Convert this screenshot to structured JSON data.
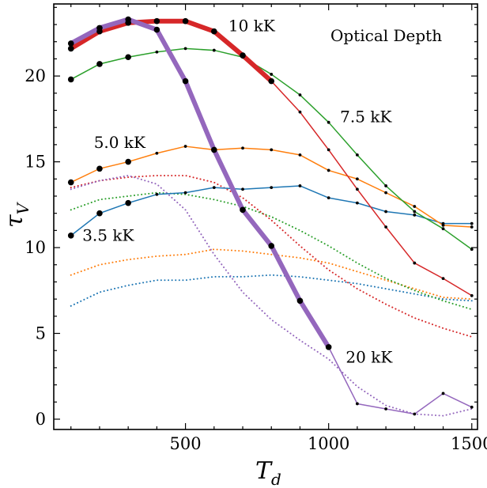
{
  "chart_data": {
    "type": "line",
    "title": "Optical Depth",
    "xlabel": {
      "main": "T",
      "sub": "d"
    },
    "ylabel": {
      "main": "τ",
      "sub": "V"
    },
    "xlim": [
      40,
      1520
    ],
    "ylim": [
      -0.6,
      24.2
    ],
    "xticks": [
      500,
      1000,
      1500
    ],
    "yticks": [
      0,
      5,
      10,
      15,
      20
    ],
    "grid": false,
    "legend": "none",
    "series": [
      {
        "color": "#1f77b4",
        "style": "solid",
        "width": 1.5,
        "marker": "large-first-points",
        "x": [
          100,
          200,
          300,
          400,
          500,
          600,
          700,
          800,
          900,
          1000,
          1100,
          1200,
          1300,
          1400,
          1500
        ],
        "y": [
          10.7,
          12.0,
          12.6,
          13.1,
          13.2,
          13.5,
          13.4,
          13.5,
          13.6,
          12.9,
          12.6,
          12.1,
          11.9,
          11.4,
          11.4
        ]
      },
      {
        "color": "#ff7f0e",
        "style": "solid",
        "width": 1.5,
        "marker": "large-first-points",
        "x": [
          100,
          200,
          300,
          400,
          500,
          600,
          700,
          800,
          900,
          1000,
          1100,
          1200,
          1300,
          1400,
          1500
        ],
        "y": [
          13.8,
          14.6,
          15.0,
          15.5,
          15.9,
          15.7,
          15.8,
          15.7,
          15.4,
          14.5,
          14.0,
          13.2,
          12.4,
          11.3,
          11.2
        ]
      },
      {
        "color": "#2ca02c",
        "style": "solid",
        "width": 1.5,
        "marker": "large-first-points",
        "x": [
          100,
          200,
          300,
          400,
          500,
          600,
          700,
          800,
          900,
          1000,
          1100,
          1200,
          1300,
          1400,
          1500
        ],
        "y": [
          19.8,
          20.7,
          21.1,
          21.4,
          21.6,
          21.5,
          21.1,
          20.1,
          18.9,
          17.3,
          15.4,
          13.6,
          12.1,
          11.1,
          9.9
        ]
      },
      {
        "color": "#d62728",
        "style": "solid",
        "width": 1.5,
        "marker": "small-points",
        "x": [
          800,
          900,
          1000,
          1100,
          1200,
          1300,
          1400,
          1500
        ],
        "y": [
          19.7,
          17.9,
          15.7,
          13.4,
          11.2,
          9.1,
          8.2,
          7.2
        ]
      },
      {
        "color": "#d62728",
        "style": "solid",
        "width": 6,
        "marker": "large-points",
        "x": [
          100,
          200,
          300,
          400,
          500,
          600,
          700,
          800
        ],
        "y": [
          21.6,
          22.6,
          23.1,
          23.2,
          23.2,
          22.6,
          21.2,
          19.7
        ]
      },
      {
        "color": "#9467bd",
        "style": "solid",
        "width": 1.5,
        "marker": "small-points",
        "x": [
          1000,
          1100,
          1200,
          1300,
          1400,
          1500
        ],
        "y": [
          4.2,
          0.9,
          0.6,
          0.3,
          1.5,
          0.7
        ]
      },
      {
        "color": "#9467bd",
        "style": "solid",
        "width": 6,
        "marker": "large-points",
        "x": [
          100,
          200,
          300,
          400,
          500,
          600,
          700,
          800,
          900,
          1000
        ],
        "y": [
          21.9,
          22.8,
          23.3,
          22.7,
          19.7,
          15.7,
          12.2,
          10.1,
          6.9,
          4.2
        ]
      },
      {
        "color": "#1f77b4",
        "style": "dotted",
        "width": 2,
        "marker": "none",
        "x": [
          100,
          200,
          300,
          400,
          500,
          600,
          700,
          800,
          900,
          1000,
          1100,
          1200,
          1300,
          1400,
          1500
        ],
        "y": [
          6.6,
          7.4,
          7.8,
          8.1,
          8.1,
          8.3,
          8.3,
          8.4,
          8.3,
          8.1,
          7.9,
          7.6,
          7.3,
          7.0,
          6.9
        ]
      },
      {
        "color": "#ff7f0e",
        "style": "dotted",
        "width": 2,
        "marker": "none",
        "x": [
          100,
          200,
          300,
          400,
          500,
          600,
          700,
          800,
          900,
          1000,
          1100,
          1200,
          1300,
          1400,
          1500
        ],
        "y": [
          8.4,
          9.0,
          9.3,
          9.5,
          9.6,
          9.9,
          9.8,
          9.6,
          9.4,
          9.1,
          8.6,
          8.1,
          7.6,
          7.1,
          7.0
        ]
      },
      {
        "color": "#2ca02c",
        "style": "dotted",
        "width": 2,
        "marker": "none",
        "x": [
          100,
          200,
          300,
          400,
          500,
          600,
          700,
          800,
          900,
          1000,
          1100,
          1200,
          1300,
          1400,
          1500
        ],
        "y": [
          12.2,
          12.8,
          13.0,
          13.2,
          13.1,
          12.8,
          12.4,
          11.8,
          11.0,
          10.1,
          9.1,
          8.2,
          7.5,
          6.9,
          6.4
        ]
      },
      {
        "color": "#d62728",
        "style": "dotted",
        "width": 2,
        "marker": "none",
        "x": [
          100,
          200,
          300,
          400,
          500,
          600,
          700,
          800,
          900,
          1000,
          1100,
          1200,
          1300,
          1400,
          1500
        ],
        "y": [
          13.5,
          13.9,
          14.1,
          14.2,
          14.2,
          13.8,
          12.9,
          11.6,
          10.1,
          8.7,
          7.6,
          6.7,
          5.9,
          5.3,
          4.8
        ]
      },
      {
        "color": "#9467bd",
        "style": "dotted",
        "width": 2,
        "marker": "none",
        "x": [
          100,
          200,
          300,
          400,
          500,
          600,
          700,
          800,
          900,
          1000,
          1100,
          1200,
          1300,
          1400,
          1500
        ],
        "y": [
          13.4,
          13.9,
          14.2,
          13.7,
          12.2,
          9.6,
          7.4,
          5.8,
          4.6,
          3.5,
          1.9,
          0.8,
          0.3,
          0.2,
          0.6
        ]
      }
    ],
    "annotations": [
      {
        "text": "10 kK",
        "x": 650,
        "y": 22.6
      },
      {
        "text": "7.5 kK",
        "x": 1040,
        "y": 17.3
      },
      {
        "text": "5.0 kK",
        "x": 180,
        "y": 15.8
      },
      {
        "text": "3.5 kK",
        "x": 140,
        "y": 10.4
      },
      {
        "text": "20 kK",
        "x": 1060,
        "y": 3.3
      }
    ]
  }
}
